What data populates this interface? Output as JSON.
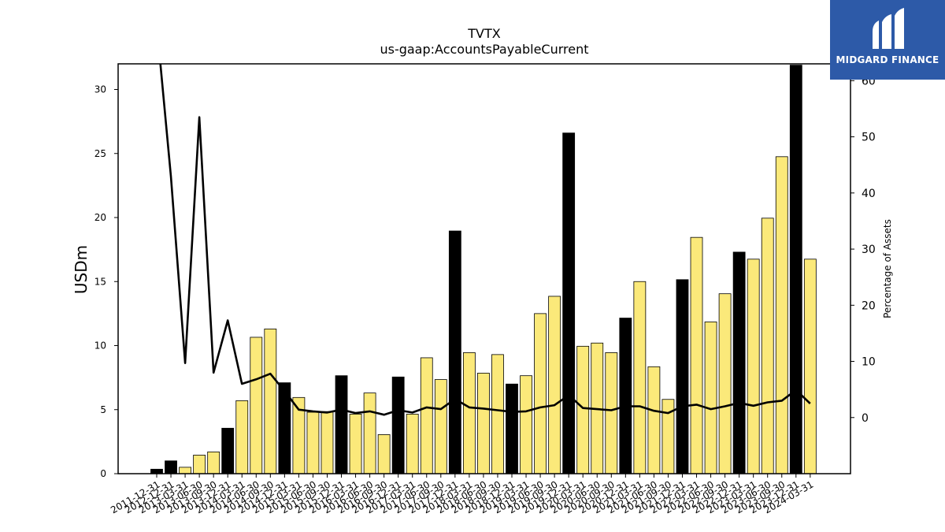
{
  "chart_data": {
    "type": "bar",
    "title": "TVTX",
    "subtitle": "us-gaap:AccountsPayableCurrent",
    "ylabel": "USDm",
    "y2label": "Percentage of Assets",
    "ylim": [
      0,
      32
    ],
    "y2lim": [
      -10,
      63
    ],
    "yticks": [
      0,
      5,
      10,
      15,
      20,
      25,
      30
    ],
    "y2ticks": [
      0,
      10,
      20,
      30,
      40,
      50,
      60
    ],
    "grid": false,
    "categories": [
      "2011-12-31",
      "2012-12-31",
      "2013-03-31",
      "2013-06-30",
      "2013-09-30",
      "2013-12-31",
      "2014-03-31",
      "2014-06-30",
      "2014-09-30",
      "2014-12-31",
      "2015-03-31",
      "2015-06-30",
      "2015-09-30",
      "2015-12-31",
      "2016-03-31",
      "2016-06-30",
      "2016-09-30",
      "2016-12-31",
      "2017-03-31",
      "2017-06-30",
      "2017-09-30",
      "2017-12-31",
      "2018-03-31",
      "2018-06-30",
      "2018-09-30",
      "2018-12-31",
      "2019-03-31",
      "2019-06-30",
      "2019-09-30",
      "2019-12-31",
      "2020-03-31",
      "2020-06-30",
      "2020-09-30",
      "2020-12-31",
      "2021-03-31",
      "2021-06-30",
      "2021-09-30",
      "2021-12-31",
      "2022-03-31",
      "2022-06-30",
      "2022-09-30",
      "2022-12-31",
      "2023-03-31",
      "2023-06-30",
      "2023-09-30",
      "2023-12-31",
      "2024-03-31"
    ],
    "series": [
      {
        "values": [
          0.35,
          1.0,
          0.5,
          1.45,
          1.7,
          3.55,
          5.7,
          10.65,
          11.3,
          7.1,
          5.95,
          4.8,
          4.85,
          7.65,
          4.65,
          6.3,
          3.05,
          7.55,
          4.65,
          9.05,
          7.35,
          18.95,
          9.45,
          7.85,
          9.3,
          7.0,
          7.65,
          12.5,
          13.85,
          26.6,
          9.95,
          10.2,
          9.45,
          12.15,
          15.0,
          8.35,
          5.8,
          15.15,
          18.45,
          11.85,
          14.05,
          17.3,
          16.75,
          19.95,
          24.75,
          31.9,
          16.75
        ],
        "annual": [
          true,
          true,
          false,
          false,
          false,
          true,
          false,
          false,
          false,
          true,
          false,
          false,
          false,
          true,
          false,
          false,
          false,
          true,
          false,
          false,
          false,
          true,
          false,
          false,
          false,
          true,
          false,
          false,
          false,
          true,
          false,
          false,
          false,
          true,
          false,
          false,
          false,
          true,
          false,
          false,
          false,
          true,
          false,
          false,
          false,
          true,
          false
        ]
      },
      {
        "axis": "right",
        "type": "line",
        "values": [
          null,
          43.0,
          9.7,
          53.5,
          8.0,
          17.3,
          6.0,
          6.8,
          7.8,
          4.7,
          1.4,
          1.1,
          0.9,
          1.4,
          0.8,
          1.1,
          0.5,
          1.3,
          0.9,
          1.8,
          1.5,
          3.3,
          1.8,
          1.6,
          1.3,
          1.0,
          1.1,
          1.8,
          2.2,
          4.0,
          1.7,
          1.5,
          1.3,
          2.0,
          2.0,
          1.2,
          0.8,
          2.0,
          2.3,
          1.5,
          2.0,
          2.6,
          2.1,
          2.7,
          3.0,
          4.9,
          2.5
        ]
      }
    ],
    "colors": {
      "annual_bar": "#000000",
      "quarter_bar": "#fbe97a",
      "line": "#000000"
    }
  },
  "logo": {
    "text": "MIDGARD FINANCE",
    "background": "#2d5aa8"
  }
}
